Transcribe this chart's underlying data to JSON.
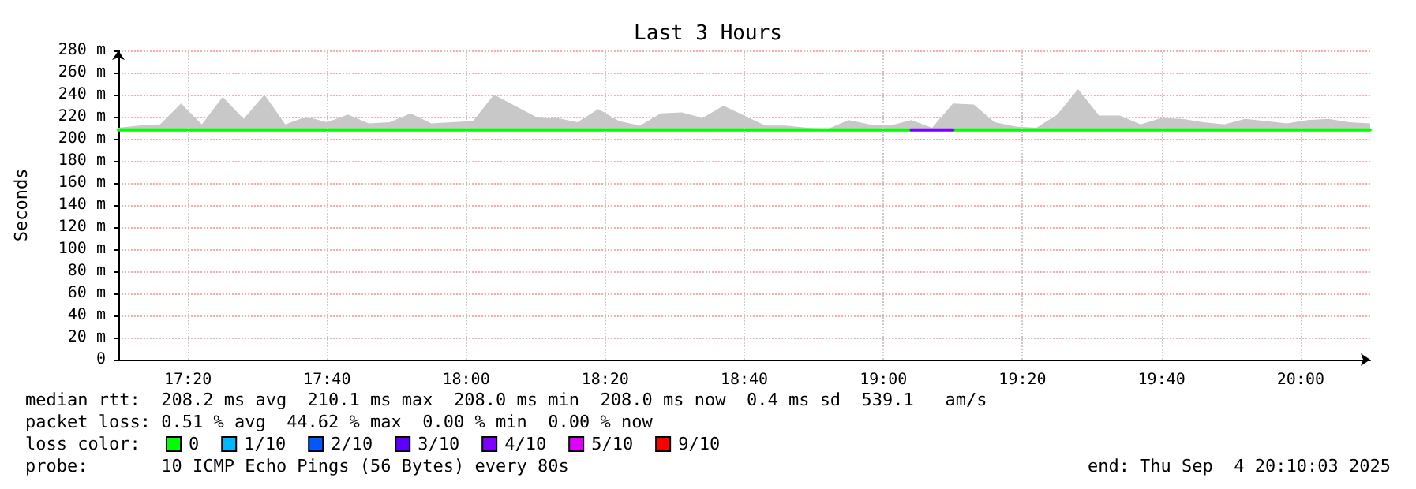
{
  "chart_data": {
    "type": "line",
    "title": "Last 3 Hours",
    "ylabel": "Seconds",
    "legend_title": "loss color:",
    "x": [
      "2025-09-04T17:10",
      "2025-09-04T17:13",
      "2025-09-04T17:16",
      "2025-09-04T17:19",
      "2025-09-04T17:22",
      "2025-09-04T17:25",
      "2025-09-04T17:28",
      "2025-09-04T17:31",
      "2025-09-04T17:34",
      "2025-09-04T17:37",
      "2025-09-04T17:40",
      "2025-09-04T17:43",
      "2025-09-04T17:46",
      "2025-09-04T17:49",
      "2025-09-04T17:52",
      "2025-09-04T17:55",
      "2025-09-04T17:58",
      "2025-09-04T18:01",
      "2025-09-04T18:04",
      "2025-09-04T18:07",
      "2025-09-04T18:10",
      "2025-09-04T18:13",
      "2025-09-04T18:16",
      "2025-09-04T18:19",
      "2025-09-04T18:22",
      "2025-09-04T18:25",
      "2025-09-04T18:28",
      "2025-09-04T18:31",
      "2025-09-04T18:34",
      "2025-09-04T18:37",
      "2025-09-04T18:40",
      "2025-09-04T18:43",
      "2025-09-04T18:46",
      "2025-09-04T18:49",
      "2025-09-04T18:52",
      "2025-09-04T18:55",
      "2025-09-04T18:58",
      "2025-09-04T19:01",
      "2025-09-04T19:04",
      "2025-09-04T19:07",
      "2025-09-04T19:10",
      "2025-09-04T19:13",
      "2025-09-04T19:16",
      "2025-09-04T19:19",
      "2025-09-04T19:22",
      "2025-09-04T19:25",
      "2025-09-04T19:28",
      "2025-09-04T19:31",
      "2025-09-04T19:34",
      "2025-09-04T19:37",
      "2025-09-04T19:40",
      "2025-09-04T19:43",
      "2025-09-04T19:46",
      "2025-09-04T19:49",
      "2025-09-04T19:52",
      "2025-09-04T19:55",
      "2025-09-04T19:58",
      "2025-09-04T20:01",
      "2025-09-04T20:04",
      "2025-09-04T20:07",
      "2025-09-04T20:10"
    ],
    "series": [
      {
        "name": "0",
        "color": "#00ff00",
        "values": [
          208,
          208,
          208,
          208,
          208,
          208,
          208,
          208,
          208,
          208,
          208,
          208,
          208,
          208,
          208,
          208,
          208,
          208,
          208,
          208,
          208,
          208,
          208,
          208,
          208,
          208,
          208,
          208,
          208,
          208,
          208,
          208,
          208,
          208,
          208,
          208,
          208,
          208,
          208,
          null,
          208,
          208,
          208,
          208,
          208,
          208,
          208,
          208,
          208,
          208,
          208,
          208,
          208,
          208,
          208,
          208,
          208,
          208,
          208,
          208,
          208
        ],
        "lower": [
          207,
          207,
          207,
          207,
          207,
          207,
          207,
          207,
          207,
          207,
          207,
          207,
          207,
          207,
          207,
          207,
          207,
          207,
          207,
          207,
          207,
          207,
          207,
          207,
          207,
          207,
          207,
          207,
          207,
          207,
          207,
          207,
          207,
          207,
          207,
          207,
          207,
          207,
          207,
          207,
          207,
          207,
          207,
          207,
          207,
          207,
          207,
          207,
          207,
          207,
          207,
          207,
          207,
          207,
          207,
          207,
          207,
          207,
          207,
          207,
          207
        ],
        "upper": [
          210,
          212,
          213,
          232,
          213,
          238,
          218,
          240,
          213,
          220,
          215,
          222,
          214,
          215,
          223,
          214,
          215,
          216,
          240,
          230,
          220,
          219,
          215,
          227,
          216,
          212,
          223,
          224,
          219,
          230,
          221,
          212,
          212,
          210,
          209,
          217,
          213,
          212,
          217,
          210,
          232,
          231,
          215,
          211,
          210,
          222,
          245,
          221,
          221,
          213,
          219,
          218,
          215,
          213,
          218,
          216,
          214,
          217,
          218,
          215,
          214
        ]
      },
      {
        "name": "1/10",
        "color": "#00b8ff",
        "values": [
          null,
          null,
          null,
          null,
          null,
          null,
          null,
          null,
          null,
          null,
          null,
          null,
          null,
          null,
          null,
          null,
          null,
          null,
          null,
          null,
          null,
          null,
          null,
          null,
          null,
          null,
          null,
          null,
          null,
          null,
          null,
          null,
          null,
          null,
          null,
          null,
          null,
          null,
          null,
          null,
          null,
          null,
          null,
          null,
          null,
          null,
          null,
          null,
          null,
          null,
          null,
          null,
          null,
          null,
          null,
          null,
          null,
          null,
          null,
          null,
          null
        ]
      },
      {
        "name": "2/10",
        "color": "#0059ff",
        "values": [
          null,
          null,
          null,
          null,
          null,
          null,
          null,
          null,
          null,
          null,
          null,
          null,
          null,
          null,
          null,
          null,
          null,
          null,
          null,
          null,
          null,
          null,
          null,
          null,
          null,
          null,
          null,
          null,
          null,
          null,
          null,
          null,
          null,
          null,
          null,
          null,
          null,
          null,
          null,
          null,
          null,
          null,
          null,
          null,
          null,
          null,
          null,
          null,
          null,
          null,
          null,
          null,
          null,
          null,
          null,
          null,
          null,
          null,
          null,
          null,
          null
        ]
      },
      {
        "name": "3/10",
        "color": "#5e00ff",
        "values": [
          null,
          null,
          null,
          null,
          null,
          null,
          null,
          null,
          null,
          null,
          null,
          null,
          null,
          null,
          null,
          null,
          null,
          null,
          null,
          null,
          null,
          null,
          null,
          null,
          null,
          null,
          null,
          null,
          null,
          null,
          null,
          null,
          null,
          null,
          null,
          null,
          null,
          null,
          null,
          null,
          null,
          null,
          null,
          null,
          null,
          null,
          null,
          null,
          null,
          null,
          null,
          null,
          null,
          null,
          null,
          null,
          null,
          null,
          null,
          null,
          null
        ]
      },
      {
        "name": "4/10",
        "color": "#7e00ff",
        "x": [
          "2025-09-04T19:04",
          "2025-09-04T19:07",
          "2025-09-04T19:10"
        ],
        "values": [
          208,
          208,
          208
        ]
      },
      {
        "name": "5/10",
        "color": "#dd00ff",
        "values": [
          null,
          null,
          null,
          null,
          null,
          null,
          null,
          null,
          null,
          null,
          null,
          null,
          null,
          null,
          null,
          null,
          null,
          null,
          null,
          null,
          null,
          null,
          null,
          null,
          null,
          null,
          null,
          null,
          null,
          null,
          null,
          null,
          null,
          null,
          null,
          null,
          null,
          null,
          null,
          null,
          null,
          null,
          null,
          null,
          null,
          null,
          null,
          null,
          null,
          null,
          null,
          null,
          null,
          null,
          null,
          null,
          null,
          null,
          null,
          null,
          null
        ]
      },
      {
        "name": "9/10",
        "color": "#ff0000",
        "values": [
          null,
          null,
          null,
          null,
          null,
          null,
          null,
          null,
          null,
          null,
          null,
          null,
          null,
          null,
          null,
          null,
          null,
          null,
          null,
          null,
          null,
          null,
          null,
          null,
          null,
          null,
          null,
          null,
          null,
          null,
          null,
          null,
          null,
          null,
          null,
          null,
          null,
          null,
          null,
          null,
          null,
          null,
          null,
          null,
          null,
          null,
          null,
          null,
          null,
          null,
          null,
          null,
          null,
          null,
          null,
          null,
          null,
          null,
          null,
          null,
          null
        ]
      }
    ],
    "xlim": [
      "2025-09-04T17:10",
      "2025-09-04T20:10"
    ],
    "xticks": [
      {
        "value": "2025-09-04T17:20",
        "label": "17:20"
      },
      {
        "value": "2025-09-04T17:40",
        "label": "17:40"
      },
      {
        "value": "2025-09-04T18:00",
        "label": "18:00"
      },
      {
        "value": "2025-09-04T18:20",
        "label": "18:20"
      },
      {
        "value": "2025-09-04T18:40",
        "label": "18:40"
      },
      {
        "value": "2025-09-04T19:00",
        "label": "19:00"
      },
      {
        "value": "2025-09-04T19:20",
        "label": "19:20"
      },
      {
        "value": "2025-09-04T19:40",
        "label": "19:40"
      },
      {
        "value": "2025-09-04T20:00",
        "label": "20:00"
      }
    ],
    "ylim": [
      0,
      280
    ],
    "yticks": [
      0,
      {
        "value": 20,
        "label": "20 m"
      },
      {
        "value": 40,
        "label": "40 m"
      },
      {
        "value": 60,
        "label": "60 m"
      },
      {
        "value": 80,
        "label": "80 m"
      },
      {
        "value": 100,
        "label": "100 m"
      },
      {
        "value": 120,
        "label": "120 m"
      },
      {
        "value": 140,
        "label": "140 m"
      },
      {
        "value": 160,
        "label": "160 m"
      },
      {
        "value": 180,
        "label": "180 m"
      },
      {
        "value": 200,
        "label": "200 m"
      },
      {
        "value": 220,
        "label": "220 m"
      },
      {
        "value": 240,
        "label": "240 m"
      },
      {
        "value": 260,
        "label": "260 m"
      },
      {
        "value": 280,
        "label": "280 m"
      }
    ],
    "grid": true,
    "legend": "bottom left",
    "marker": "none",
    "line_style": "solid",
    "annotations": [
      "median rtt:  208.2 ms avg  210.1 ms max  208.0 ms min  208.0 ms now  0.4 ms sd  539.1   am/s",
      "packet loss: 0.51 % avg  44.62 % max  0.00 % min  0.00 % now",
      "probe:       10 ICMP Echo Pings (56 Bytes) every 80s",
      "end: Thu Sep  4 20:10:03 2025"
    ]
  }
}
